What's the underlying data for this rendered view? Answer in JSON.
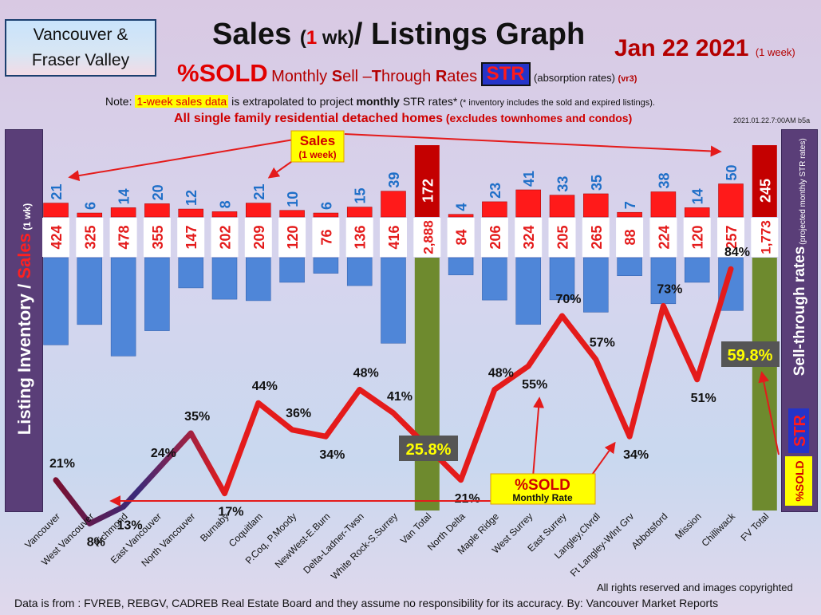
{
  "header": {
    "region": [
      "Vancouver &",
      "Fraser Valley"
    ],
    "title_a": "Sales ",
    "title_b": "(",
    "title_c": "1",
    "title_d": " wk)",
    "title_e": "/ Listings Graph",
    "date": "Jan 22  2021",
    "date_note": "(1 week)",
    "subtitle_sold": "%SOLD",
    "subtitle_rates_1": "Monthly ",
    "subtitle_rates_S": "S",
    "subtitle_rates_2": "ell –",
    "subtitle_rates_T": "T",
    "subtitle_rates_3": "hrough ",
    "subtitle_rates_R": "R",
    "subtitle_rates_4": "ates",
    "str_label": "STR",
    "absorption": "(absorption rates)",
    "version": "(vr3)",
    "note_prefix": "Note: ",
    "note_highlight": "1-week sales data",
    "note_mid": " is extrapolated to project ",
    "note_bold": "monthly",
    "note_end": " STR rates*",
    "note_small": " (* inventory includes the sold and expired listings).",
    "detached_main": "All single family residential detached homes",
    "detached_sub": " (excludes townhomes and condos)",
    "timestamp": "2021.01.22.7:00AM b5a"
  },
  "left_axis": {
    "label_a": "Listing Inventory / ",
    "label_b": "Sales",
    "label_c": " (1 wk)"
  },
  "right_axis": {
    "sold": "%SOLD",
    "str": "STR",
    "label": "Sell-through rates",
    "sub": "(projected monthly STR rates)"
  },
  "callouts": {
    "sales_1": "Sales",
    "sales_2": "(1 week)",
    "sold_1": "%SOLD",
    "sold_2": "Monthly Rate",
    "van_total_pct": "25.8%",
    "fv_total_pct": "59.8%"
  },
  "footer": {
    "rights": "All rights reserved and  images copyrighted",
    "source": "Data is from : FVREB, REBGV, CADREB Real Estate Board and they assume no responsibility for its accuracy. By: Vancouver Market Reports"
  },
  "colors": {
    "sales": "#ff1a1a",
    "listings": "#4f86d8",
    "total_sales": "#c40000",
    "total_listings": "#6e8a2e",
    "str_line": "#e41b1b"
  },
  "chart_data": {
    "type": "bar",
    "title": "Sales (1 wk)/ Listings Graph",
    "categories": [
      "Vancouver",
      "West Vancouver",
      "Richmond",
      "East Vancouver",
      "North Vancouver",
      "Burnaby",
      "Coquitlam",
      "P.Coq, P.Moody",
      "NewWest-E.Burn",
      "Delta-Ladner-Twsn",
      "White Rock-S.Surrey",
      "Van Total",
      "North Delta",
      "Maple Ridge",
      "West Surrey",
      "East Surrey",
      "Langley,Clvrdl",
      "Ft Langley-Wlnt Grv",
      "Abbotsford",
      "Mission",
      "Chilliwack",
      "FV Total"
    ],
    "series": [
      {
        "name": "Sales",
        "values": [
          21,
          6,
          14,
          20,
          12,
          8,
          21,
          10,
          6,
          15,
          39,
          172,
          4,
          23,
          41,
          33,
          35,
          7,
          38,
          14,
          50,
          245
        ]
      },
      {
        "name": "Listing Inventory",
        "values": [
          424,
          325,
          478,
          355,
          147,
          202,
          209,
          120,
          76,
          136,
          416,
          2888,
          84,
          206,
          324,
          205,
          265,
          88,
          224,
          120,
          257,
          1773
        ]
      },
      {
        "name": "%SOLD",
        "values": [
          21,
          8,
          13,
          24,
          35,
          17,
          44,
          36,
          34,
          48,
          41,
          25.8,
          21,
          48,
          55,
          70,
          57,
          34,
          73,
          51,
          84,
          59.8
        ]
      }
    ],
    "sales_labels": [
      "21",
      "6",
      "14",
      "20",
      "12",
      "8",
      "21",
      "10",
      "6",
      "15",
      "39",
      "172",
      "4",
      "23",
      "41",
      "33",
      "35",
      "7",
      "38",
      "14",
      "50",
      "245"
    ],
    "listing_labels": [
      "424",
      "325",
      "478",
      "355",
      "147",
      "202",
      "209",
      "120",
      "76",
      "136",
      "416",
      "2,888",
      "84",
      "206",
      "324",
      "205",
      "265",
      "88",
      "224",
      "120",
      "257",
      "1,773"
    ],
    "pct_labels": [
      "21%",
      "8%",
      "13%",
      "24%",
      "35%",
      "17%",
      "44%",
      "36%",
      "34%",
      "48%",
      "41%",
      "",
      "21%",
      "48%",
      "55%",
      "70%",
      "57%",
      "34%",
      "73%",
      "51%",
      "84%",
      ""
    ],
    "totals_index": [
      11,
      21
    ],
    "ylabel": "Listing Inventory / Sales (1 wk)",
    "y2label": "%SOLD STR Sell-through rates",
    "grid": false
  }
}
